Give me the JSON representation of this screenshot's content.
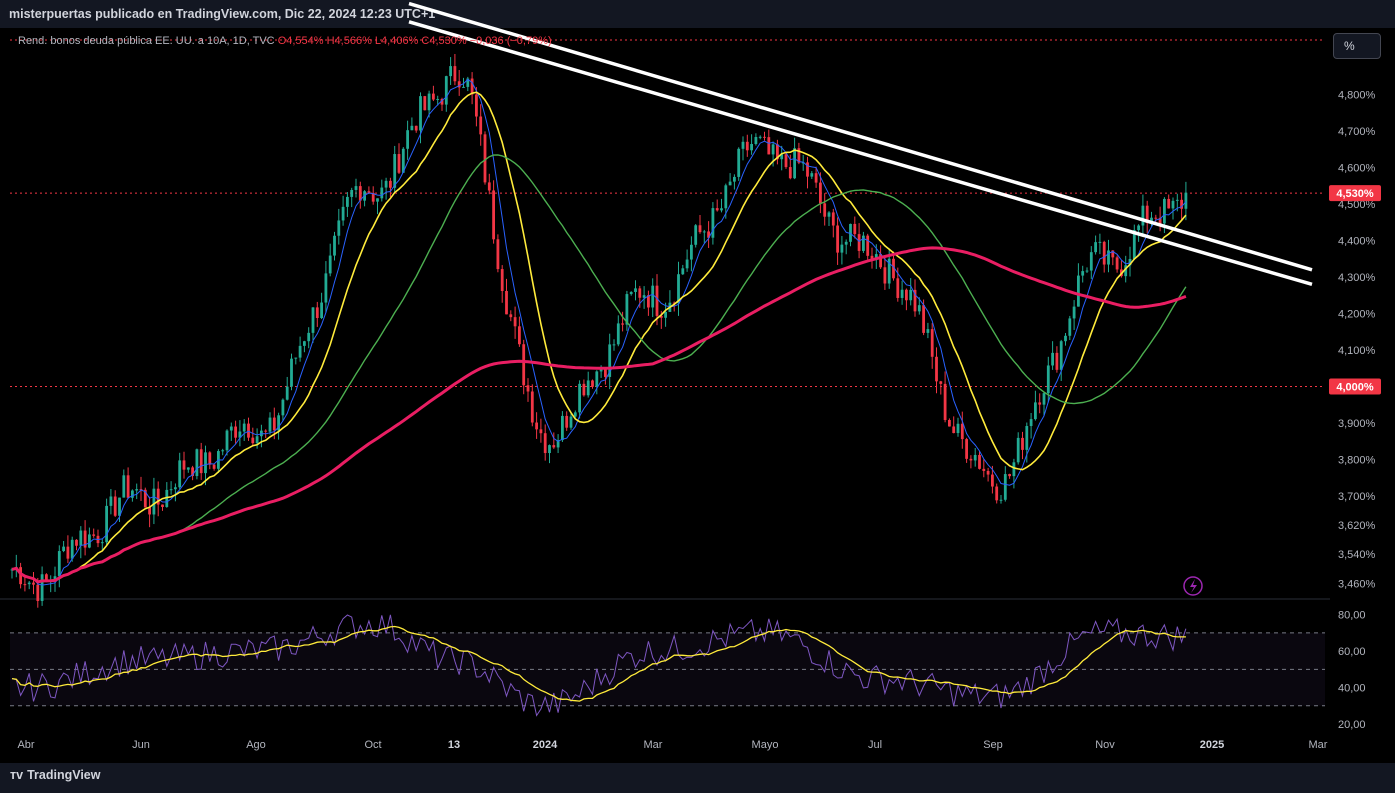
{
  "header": {
    "attribution": "misterpuertas publicado en TradingView.com, Dic 22, 2024 12:23 UTC+1"
  },
  "legend": {
    "symbol": "Rend. bonos deuda pública EE. UU. a 10A, 1D, TVC",
    "ohlc": "O4,554% H4,566% L4,406% C4,530% −0,036 (−0,79%)"
  },
  "scale_button": "%",
  "price_tags": {
    "last": "4,530%",
    "level": "4,000%"
  },
  "brand": {
    "name": "TradingView"
  },
  "colors": {
    "up": "#22ab94",
    "down": "#f23645",
    "ma_fast": "#2962ff",
    "ma_yellow": "#ffeb3b",
    "ma_green": "#4caf50",
    "ma_long": "#e91e63",
    "trend": "#ffffff",
    "rsi": "#7e57c2",
    "rsi_ma": "#ffeb3b"
  },
  "chart_data": [
    {
      "type": "line",
      "title": "",
      "y_unit": "%",
      "y_ticks": [
        "4,800%",
        "4,700%",
        "4,600%",
        "4,500%",
        "4,400%",
        "4,300%",
        "4,200%",
        "4,100%",
        "3,900%",
        "3,800%",
        "3,700%",
        "3,620%",
        "3,540%",
        "3,460%"
      ],
      "x_ticks": [
        "Abr",
        "Jun",
        "Ago",
        "Oct",
        "13",
        "2024",
        "Mar",
        "Mayo",
        "Jul",
        "Sep",
        "Nov",
        "2025",
        "Mar"
      ],
      "x_ticks_bold": [
        "13",
        "2024",
        "2025"
      ],
      "series": [
        {
          "name": "",
          "x": [
            "Abr",
            "Jun",
            "Ago",
            "Oct",
            "13",
            "2024",
            "Mar",
            "Mayo",
            "Jul",
            "Sep",
            "Nov",
            "2024-12-20"
          ],
          "values": [
            3.47,
            3.7,
            3.88,
            4.55,
            4.85,
            3.88,
            4.25,
            4.65,
            4.36,
            3.75,
            4.35,
            4.53
          ]
        }
      ],
      "horizontal_levels": [
        4.95,
        4.53,
        4.0
      ],
      "trendlines": [
        {
          "from": [
            "13",
            5.05
          ],
          "to": [
            "2025",
            4.32
          ]
        },
        {
          "from": [
            "13",
            5.0
          ],
          "to": [
            "2025",
            4.28
          ]
        }
      ]
    },
    {
      "type": "line",
      "title": "",
      "y_ticks": [
        "80,00",
        "60,00",
        "40,00",
        "20,00"
      ],
      "levels": [
        70,
        50,
        30
      ],
      "series": [
        {
          "name": "",
          "x": [
            "Abr",
            "Jun",
            "Ago",
            "Oct",
            "13",
            "2024",
            "Mar",
            "Mayo",
            "Jul",
            "Sep",
            "Nov",
            "2024-12-20"
          ],
          "values": [
            40,
            55,
            60,
            75,
            55,
            30,
            60,
            70,
            45,
            35,
            70,
            68
          ]
        }
      ]
    }
  ]
}
